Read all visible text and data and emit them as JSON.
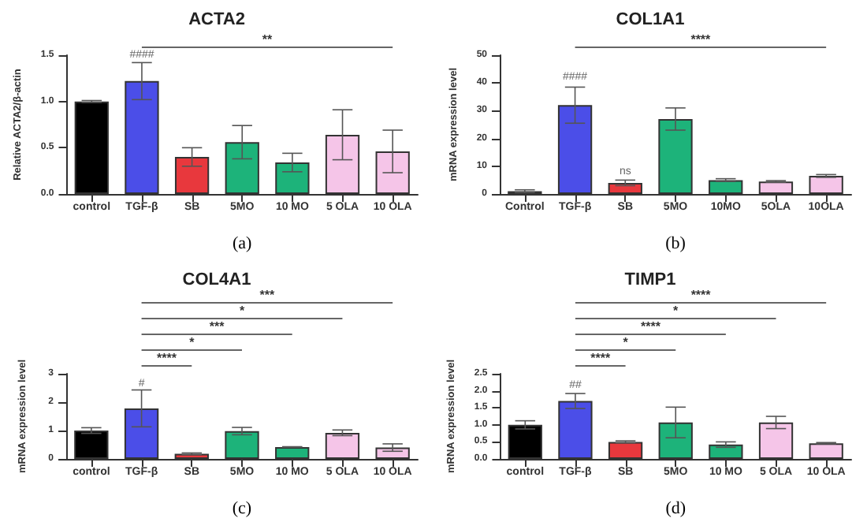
{
  "chart_data": [
    {
      "type": "bar",
      "title": "ACTA2",
      "ylabel": "Relative ACTA2/β-actin",
      "xlabel": "(a)",
      "categories": [
        "control",
        "TGF-β",
        "SB",
        "5MO",
        "10 MO",
        "5 OLA",
        "10 OLA"
      ],
      "values": [
        1.0,
        1.22,
        0.4,
        0.56,
        0.34,
        0.64,
        0.46
      ],
      "errors": [
        0.01,
        0.2,
        0.1,
        0.18,
        0.1,
        0.27,
        0.23
      ],
      "colors": [
        "#000000",
        "#4b4ee8",
        "#e8383d",
        "#1db37a",
        "#1db37a",
        "#f5c5e8",
        "#f5c5e8"
      ],
      "ylim": [
        0,
        1.5
      ],
      "yticks": [
        {
          "value": 0,
          "label": "0.0"
        },
        0.5,
        {
          "value": 1,
          "label": "1.0"
        },
        1.5
      ],
      "grid": false,
      "annotations": [
        {
          "text": "####",
          "x": "TGF-β",
          "y": 1.44
        },
        "**"
      ]
    },
    {
      "type": "bar",
      "title": "COL1A1",
      "ylabel": "mRNA expression level",
      "xlabel": "(b)",
      "categories": [
        "Control",
        "TGF-β",
        "SB",
        "5MO",
        "10MO",
        "5OLA",
        "10OLA"
      ],
      "values": [
        1,
        32,
        4,
        27,
        5,
        4.5,
        6.5
      ],
      "errors": [
        0.5,
        6.5,
        1,
        4,
        0.5,
        0.3,
        0.5
      ],
      "colors": [
        "#000000",
        "#4b4ee8",
        "#e8383d",
        "#1db37a",
        "#1db37a",
        "#f5c5e8",
        "#f5c5e8"
      ],
      "ylim": [
        0,
        50
      ],
      "yticks": [
        0,
        10,
        20,
        30,
        40,
        50
      ],
      "grid": false,
      "annotations": [
        {
          "text": "####",
          "x": "TGF-β",
          "y": 40
        },
        {
          "text": "ns",
          "x": "SB",
          "y": 6
        },
        "****"
      ]
    },
    {
      "type": "bar",
      "title": "COL4A1",
      "ylabel": "mRNA expression level",
      "xlabel": "(c)",
      "categories": [
        "control",
        "TGF-β",
        "SB",
        "5MO",
        "10 MO",
        "5 OLA",
        "10 OLA"
      ],
      "values": [
        1.0,
        1.78,
        0.18,
        0.98,
        0.42,
        0.92,
        0.4
      ],
      "errors": [
        0.1,
        0.65,
        0.03,
        0.13,
        0.01,
        0.1,
        0.13
      ],
      "colors": [
        "#000000",
        "#4b4ee8",
        "#e8383d",
        "#1db37a",
        "#1db37a",
        "#f5c5e8",
        "#f5c5e8"
      ],
      "ylim": [
        0,
        3
      ],
      "yticks": [
        0,
        1,
        2,
        3
      ],
      "grid": false,
      "annotations": [
        {
          "text": "#",
          "x": "TGF-β",
          "y": 2.45
        },
        "****",
        "*",
        "***",
        "*",
        "***"
      ]
    },
    {
      "type": "bar",
      "title": "TIMP1",
      "ylabel": "mRNA expression level",
      "xlabel": "(d)",
      "categories": [
        "control",
        "TGF-β",
        "SB",
        "5MO",
        "10 MO",
        "5 OLA",
        "10 OLA"
      ],
      "values": [
        1.0,
        1.7,
        0.5,
        1.07,
        0.42,
        1.07,
        0.46
      ],
      "errors": [
        0.12,
        0.22,
        0.03,
        0.45,
        0.08,
        0.18,
        0.02
      ],
      "colors": [
        "#000000",
        "#4b4ee8",
        "#e8383d",
        "#1db37a",
        "#1db37a",
        "#f5c5e8",
        "#f5c5e8"
      ],
      "ylim": [
        0,
        2.5
      ],
      "yticks": [
        {
          "value": 0,
          "label": "0.0"
        },
        0.5,
        {
          "value": 1,
          "label": "1.0"
        },
        1.5,
        {
          "value": 2,
          "label": "2.0"
        },
        2.5
      ],
      "grid": false,
      "annotations": [
        {
          "text": "##",
          "x": "TGF-β",
          "y": 1.98
        },
        "****",
        "*",
        "****",
        "*",
        "****"
      ]
    }
  ]
}
